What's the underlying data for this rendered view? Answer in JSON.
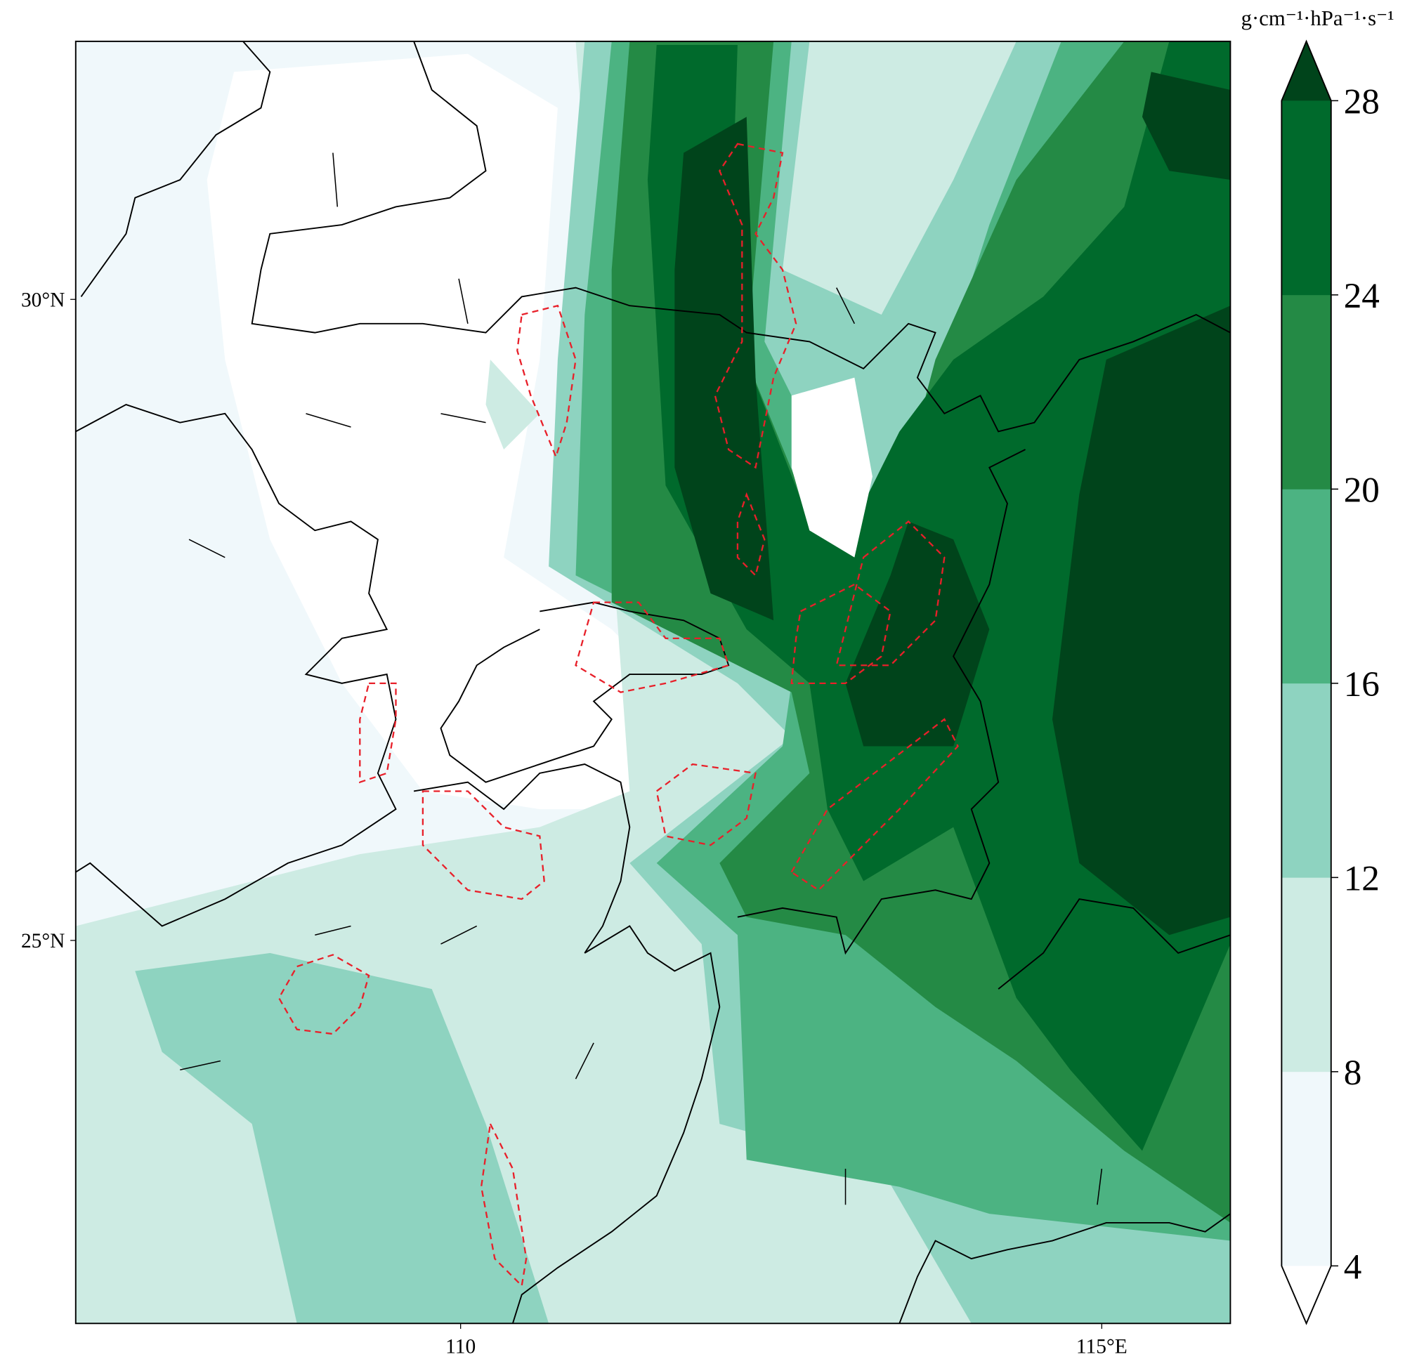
{
  "map": {
    "x_labels": [
      "110",
      "115°E"
    ],
    "y_labels": [
      "30°N",
      "25°N"
    ],
    "colorbar": {
      "unit": "g·cm⁻¹·hPa⁻¹·s⁻¹",
      "ticks": [
        4,
        8,
        12,
        16,
        20,
        24,
        28
      ],
      "colors": [
        "#f0f8fb",
        "#cdebe3",
        "#8ed3c0",
        "#4cb382",
        "#248a45",
        "#006a2c"
      ],
      "under_color": "#ffffff",
      "over_color": "#00441b"
    }
  }
}
